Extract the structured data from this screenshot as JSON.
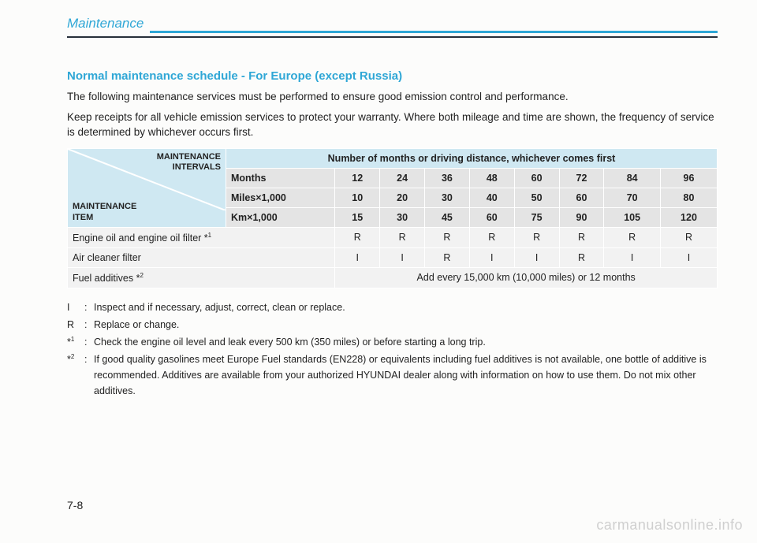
{
  "header": {
    "title": "Maintenance"
  },
  "section": {
    "title": "Normal maintenance schedule - For Europe (except Russia)",
    "p1": "The following maintenance services must be performed to ensure good emission control and performance.",
    "p2": "Keep receipts for all vehicle emission services to protect your warranty. Where both mileage and time are shown, the frequency of service is determined by whichever occurs first."
  },
  "table": {
    "diag_top": "MAINTENANCE\nINTERVALS",
    "diag_bottom": "MAINTENANCE\nITEM",
    "header_span": "Number of months or driving distance, whichever comes first",
    "rows_header": [
      {
        "label": "Months",
        "vals": [
          "12",
          "24",
          "36",
          "48",
          "60",
          "72",
          "84",
          "96"
        ]
      },
      {
        "label": "Miles×1,000",
        "vals": [
          "10",
          "20",
          "30",
          "40",
          "50",
          "60",
          "70",
          "80"
        ]
      },
      {
        "label": "Km×1,000",
        "vals": [
          "15",
          "30",
          "45",
          "60",
          "75",
          "90",
          "105",
          "120"
        ]
      }
    ],
    "rows_body": [
      {
        "label": "Engine oil and engine oil filter *",
        "sup": "1",
        "vals": [
          "R",
          "R",
          "R",
          "R",
          "R",
          "R",
          "R",
          "R"
        ]
      },
      {
        "label": "Air cleaner filter",
        "sup": "",
        "vals": [
          "I",
          "I",
          "R",
          "I",
          "I",
          "R",
          "I",
          "I"
        ]
      },
      {
        "label": "Fuel additives *",
        "sup": "2",
        "span": "Add every 15,000 km (10,000 miles) or 12 months"
      }
    ]
  },
  "legend": {
    "I": "Inspect and if necessary, adjust, correct, clean or replace.",
    "R": "Replace or change.",
    "n1": "Check the engine oil level and leak every 500 km (350 miles) or before starting a long trip.",
    "n2": "If good quality gasolines meet Europe Fuel standards (EN228) or equivalents including fuel additives is not available, one bottle of additive is recommended. Additives are available from your authorized HYUNDAI dealer along with information on how to use them. Do not mix other additives."
  },
  "page_num": "7-8",
  "watermark": "carmanualsonline.info"
}
